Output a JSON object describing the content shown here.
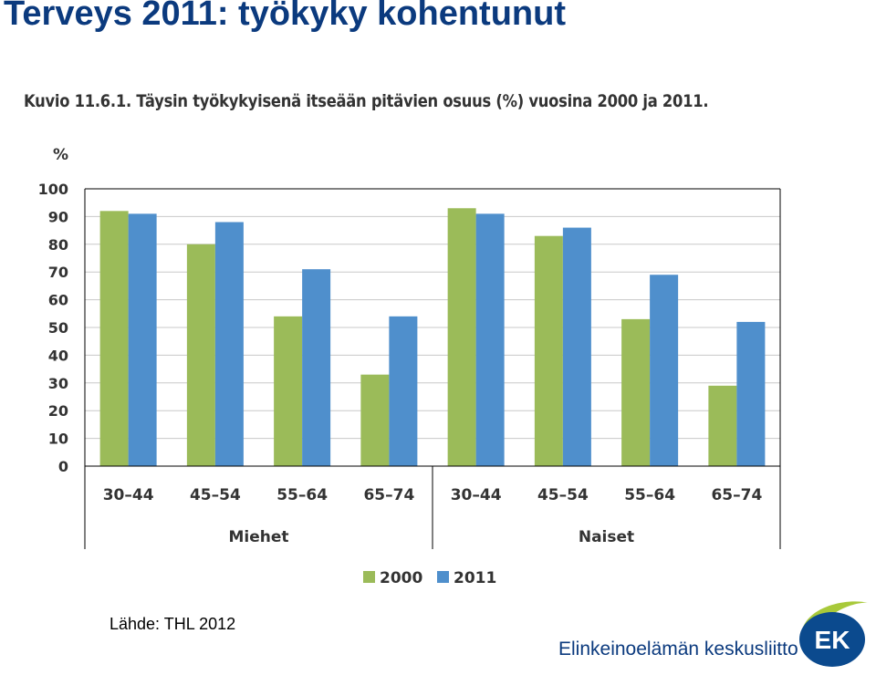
{
  "slide_title": "Terveys 2011: työkyky kohentunut",
  "figure_caption": "Kuvio 11.6.1. Täysin työkykyisenä itseään pitävien osuus (%) vuosina 2000 ja 2011.",
  "source": "Lähde: THL 2012",
  "org_name": "Elinkeinoelämän keskusliitto",
  "logo_text": "EK",
  "colors": {
    "title": "#0b3a7e",
    "series_2000": "#9bbb59",
    "series_2011": "#4f8fcc",
    "logo_blue": "#0b4a8e",
    "logo_green": "#a8c93a"
  },
  "chart_data": {
    "type": "bar",
    "title": "Kuvio 11.6.1. Täysin työkykyisenä itseään pitävien osuus (%) vuosina 2000 ja 2011.",
    "ylabel": "%",
    "ylim": [
      0,
      100
    ],
    "yticks": [
      "0",
      "10",
      "20",
      "30",
      "40",
      "50",
      "60",
      "70",
      "80",
      "90",
      "100"
    ],
    "categories": [
      "30–44",
      "45–54",
      "55–64",
      "65–74",
      "30–44",
      "45–54",
      "55–64",
      "65–74"
    ],
    "groups": [
      {
        "label": "Miehet",
        "categories": [
          "30–44",
          "45–54",
          "55–64",
          "65–74"
        ]
      },
      {
        "label": "Naiset",
        "categories": [
          "30–44",
          "45–54",
          "55–64",
          "65–74"
        ]
      }
    ],
    "series": [
      {
        "name": "2000",
        "values": [
          92,
          80,
          54,
          33,
          93,
          83,
          53,
          29
        ]
      },
      {
        "name": "2011",
        "values": [
          91,
          88,
          71,
          54,
          91,
          86,
          69,
          52
        ]
      }
    ],
    "grid": true,
    "legend_position": "bottom-center"
  }
}
